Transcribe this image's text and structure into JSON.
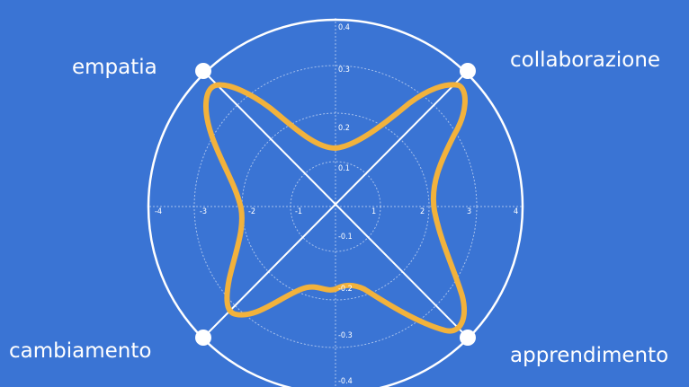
{
  "labels": {
    "top_left": "empatia",
    "top_right": "collaborazione",
    "bottom_left": "cambiamento",
    "bottom_right": "apprendimento"
  },
  "x_ticks": [
    "-4",
    "-3",
    "-2",
    "-1",
    "1",
    "2",
    "3",
    "4"
  ],
  "y_ticks": [
    "0.4",
    "0.3",
    "0.2",
    "0.1",
    "-0.1",
    "-0.2",
    "-0.3",
    "-0.4"
  ],
  "colors": {
    "background": "#3a74d4",
    "lines": "#ffffff",
    "curve": "#f2b23c"
  }
}
